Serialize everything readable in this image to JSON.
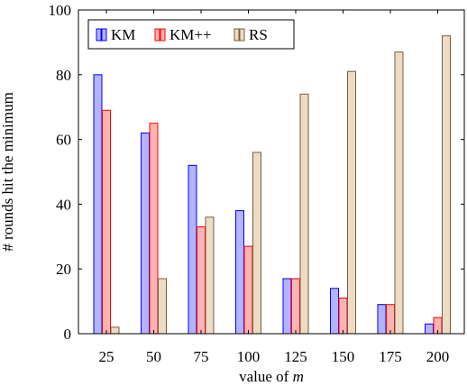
{
  "chart_data": {
    "type": "bar",
    "categories": [
      "25",
      "50",
      "75",
      "100",
      "125",
      "150",
      "175",
      "200"
    ],
    "series": [
      {
        "name": "KM",
        "values": [
          80,
          62,
          52,
          38,
          17,
          14,
          9,
          3
        ],
        "fill": "#b3b3ff",
        "stroke": "#0000ff"
      },
      {
        "name": "KM++",
        "values": [
          69,
          65,
          33,
          27,
          17,
          11,
          9,
          5
        ],
        "fill": "#ffb3b3",
        "stroke": "#ff0000"
      },
      {
        "name": "RS",
        "values": [
          2,
          17,
          36,
          56,
          74,
          81,
          87,
          92
        ],
        "fill": "#ecdcc6",
        "stroke": "#7a5c3e"
      }
    ],
    "xlabel_prefix": "value of ",
    "xlabel_var": "m",
    "ylabel": "# rounds hit the minimum",
    "ylim": [
      0,
      100
    ],
    "yticks": [
      0,
      20,
      40,
      60,
      80,
      100
    ],
    "grid": false,
    "legend_position": "top-left"
  }
}
